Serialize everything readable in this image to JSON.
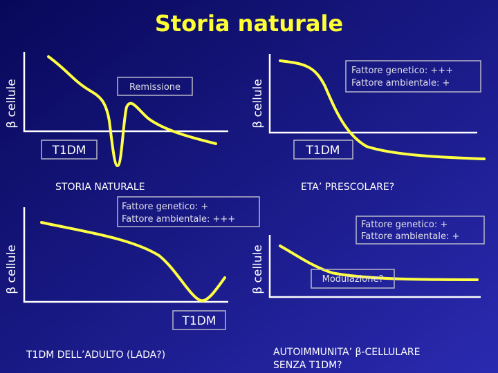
{
  "title": "Storia naturale",
  "panels": [
    {
      "y_label": "β cellule",
      "box": [
        "Remissione"
      ],
      "outcome": "T1DM",
      "caption": [
        "STORIA NATURALE"
      ]
    },
    {
      "y_label": "β cellule",
      "box": [
        "Fattore genetico: +++",
        "Fattore ambientale: +"
      ],
      "outcome": "T1DM",
      "caption": [
        "ETA’ PRESCOLARE?"
      ]
    },
    {
      "y_label": "β cellule",
      "box": [
        "Fattore genetico: +",
        "Fattore ambientale: +++"
      ],
      "outcome": "T1DM",
      "caption": [
        "T1DM DELL’ADULTO (LADA?)"
      ]
    },
    {
      "y_label": "β cellule",
      "box": [
        "Fattore genetico:  +",
        "Fattore ambientale: +"
      ],
      "outcome": "Modulazione?",
      "caption": [
        "AUTOIMMUNITA’ β-CELLULARE",
        "SENZA T1DM?"
      ]
    }
  ]
}
